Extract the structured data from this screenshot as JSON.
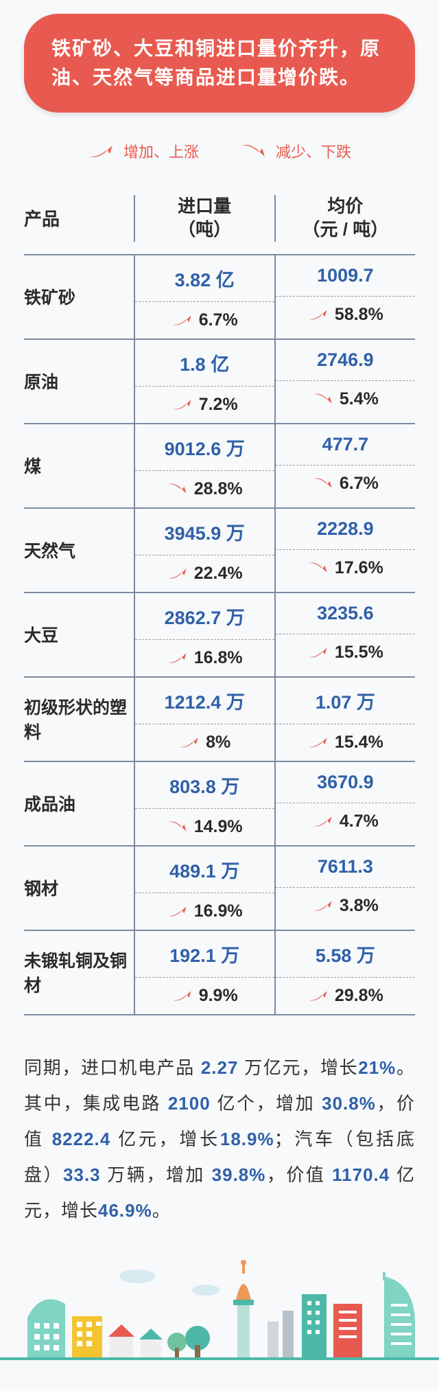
{
  "colors": {
    "red": "#e85a4f",
    "blue": "#3060a8",
    "teal": "#4db8a8",
    "yellow": "#f4c430",
    "orange": "#f0975a"
  },
  "header": {
    "text": "铁矿砂、大豆和铜进口量价齐升，原油、天然气等商品进口量增价跌。"
  },
  "legend": {
    "up": "增加、上涨",
    "down": "减少、下跌"
  },
  "table": {
    "columns": {
      "product": "产品",
      "volume": "进口量\n（吨）",
      "price": "均价\n（元 / 吨）"
    },
    "rows": [
      {
        "name": "铁矿砂",
        "vol": "3.82 亿",
        "vol_chg": "6.7%",
        "vol_dir": "up",
        "price": "1009.7",
        "price_chg": "58.8%",
        "price_dir": "up"
      },
      {
        "name": "原油",
        "vol": "1.8 亿",
        "vol_chg": "7.2%",
        "vol_dir": "up",
        "price": "2746.9",
        "price_chg": "5.4%",
        "price_dir": "down"
      },
      {
        "name": "煤",
        "vol": "9012.6 万",
        "vol_chg": "28.8%",
        "vol_dir": "down",
        "price": "477.7",
        "price_chg": "6.7%",
        "price_dir": "down"
      },
      {
        "name": "天然气",
        "vol": "3945.9 万",
        "vol_chg": "22.4%",
        "vol_dir": "up",
        "price": "2228.9",
        "price_chg": "17.6%",
        "price_dir": "down"
      },
      {
        "name": "大豆",
        "vol": "2862.7 万",
        "vol_chg": "16.8%",
        "vol_dir": "up",
        "price": "3235.6",
        "price_chg": "15.5%",
        "price_dir": "up"
      },
      {
        "name": "初级形状的塑料",
        "vol": "1212.4 万",
        "vol_chg": "8%",
        "vol_dir": "up",
        "price": "1.07 万",
        "price_chg": "15.4%",
        "price_dir": "up"
      },
      {
        "name": "成品油",
        "vol": "803.8 万",
        "vol_chg": "14.9%",
        "vol_dir": "down",
        "price": "3670.9",
        "price_chg": "4.7%",
        "price_dir": "up"
      },
      {
        "name": "钢材",
        "vol": "489.1 万",
        "vol_chg": "16.9%",
        "vol_dir": "up",
        "price": "7611.3",
        "price_chg": "3.8%",
        "price_dir": "up"
      },
      {
        "name": "未锻轧铜及铜材",
        "vol": "192.1 万",
        "vol_chg": "9.9%",
        "vol_dir": "up",
        "price": "5.58 万",
        "price_chg": "29.8%",
        "price_dir": "up"
      }
    ]
  },
  "bottom": {
    "parts": [
      {
        "t": "同期，进口机电产品 ",
        "n": false
      },
      {
        "t": "2.27",
        "n": true
      },
      {
        "t": " 万亿元，增长",
        "n": false
      },
      {
        "t": "21%",
        "n": true
      },
      {
        "t": "。其中，集成电路 ",
        "n": false
      },
      {
        "t": "2100",
        "n": true
      },
      {
        "t": " 亿个，增加 ",
        "n": false
      },
      {
        "t": "30.8%",
        "n": true
      },
      {
        "t": "，价值 ",
        "n": false
      },
      {
        "t": "8222.4",
        "n": true
      },
      {
        "t": " 亿元，增长",
        "n": false
      },
      {
        "t": "18.9%",
        "n": true
      },
      {
        "t": "；汽车（包括底盘）",
        "n": false
      },
      {
        "t": "33.3",
        "n": true
      },
      {
        "t": " 万辆，增加 ",
        "n": false
      },
      {
        "t": "39.8%",
        "n": true
      },
      {
        "t": "，价值 ",
        "n": false
      },
      {
        "t": "1170.4",
        "n": true
      },
      {
        "t": " 亿元，增长",
        "n": false
      },
      {
        "t": "46.9%",
        "n": true
      },
      {
        "t": "。",
        "n": false
      }
    ]
  }
}
